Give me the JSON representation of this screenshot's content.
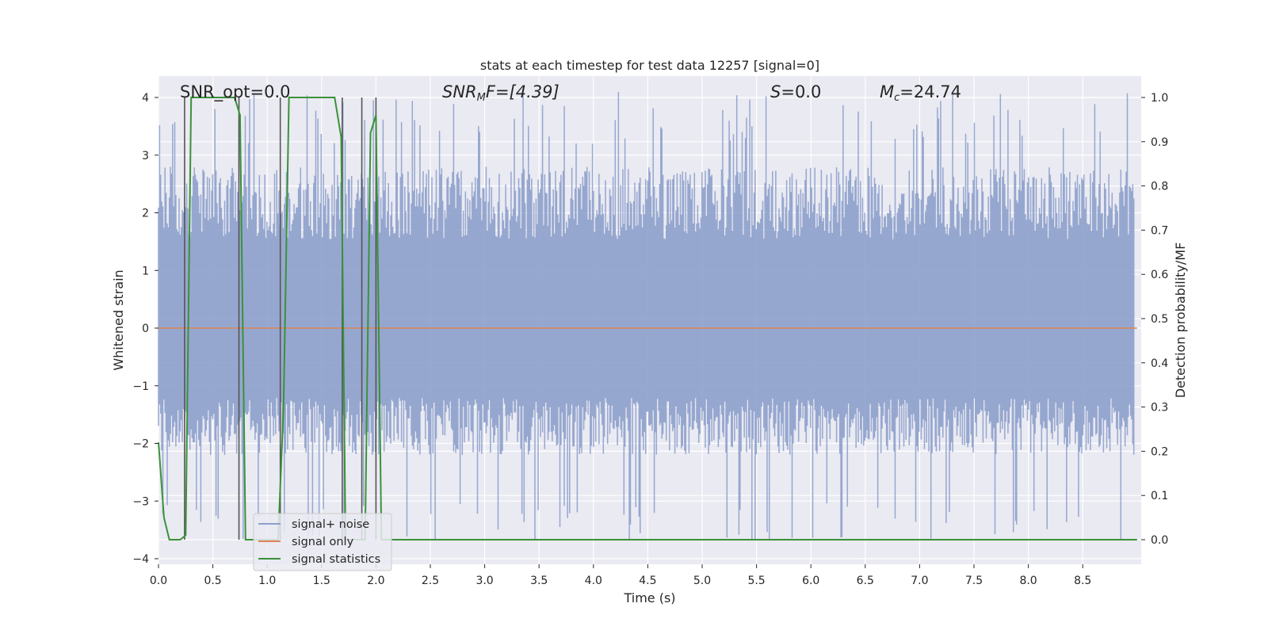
{
  "chart_data": {
    "type": "line",
    "title": "stats at each timestep for test data 12257 [signal=0]",
    "xlabel": "Time (s)",
    "ylabel": "Whitened strain",
    "y2label": "Detection probability/MF",
    "xlim": [
      0,
      9.0
    ],
    "ylim": [
      -4.1,
      4.4
    ],
    "y2lim": [
      -0.047,
      1.045
    ],
    "grid": true,
    "legend_position": "lower-left",
    "x_ticks": [
      "0.0",
      "0.5",
      "1.0",
      "1.5",
      "2.0",
      "2.5",
      "3.0",
      "3.5",
      "4.0",
      "4.5",
      "5.0",
      "5.5",
      "6.0",
      "6.5",
      "7.0",
      "7.5",
      "8.0",
      "8.5"
    ],
    "y_ticks": [
      "4",
      "3",
      "2",
      "1",
      "0",
      "−1",
      "−2",
      "−3",
      "−4"
    ],
    "y2_ticks": [
      "1.0",
      "0.9",
      "0.8",
      "0.7",
      "0.6",
      "0.5",
      "0.4",
      "0.3",
      "0.2",
      "0.1",
      "0.0"
    ],
    "annotations": {
      "snr_opt": "SNR_opt=0.0",
      "snr_mf_main": "SNR",
      "snr_mf_sub": "M",
      "snr_mf_rest": "F=[4.39]",
      "s_main": "S",
      "s_rest": "=0.0",
      "mc_main": "M",
      "mc_sub": "c",
      "mc_rest": "=24.74"
    },
    "legend": [
      {
        "label": "signal+ noise",
        "color": "#8da0cb"
      },
      {
        "label": "signal only",
        "color": "#e1815c"
      },
      {
        "label": "signal statistics",
        "color": "#3a923a"
      }
    ],
    "noise": {
      "name": "signal+ noise",
      "color": "#8da0cb",
      "sample_count": 900,
      "typical_range": [
        -2.2,
        2.8
      ],
      "extreme_range": [
        -3.7,
        4.1
      ]
    },
    "signal_only": {
      "name": "signal only",
      "color": "#dd8452",
      "x": [
        0,
        9.0
      ],
      "y": [
        0,
        0
      ]
    },
    "statistics": {
      "name": "signal statistics",
      "color": "#3a923a",
      "x": [
        0.0,
        0.05,
        0.1,
        0.2,
        0.25,
        0.3,
        0.4,
        0.5,
        0.6,
        0.7,
        0.75,
        0.8,
        0.9,
        1.0,
        1.1,
        1.15,
        1.2,
        1.3,
        1.4,
        1.5,
        1.6,
        1.62,
        1.68,
        1.72,
        1.8,
        1.9,
        1.95,
        2.0,
        2.05,
        2.1,
        2.15,
        2.5,
        3.0,
        4.0,
        5.0,
        5.5,
        5.6,
        5.7,
        6.0,
        6.5,
        7.0,
        7.05,
        7.1,
        7.5,
        8.0,
        8.5,
        9.0
      ],
      "y": [
        0.22,
        0.05,
        0.0,
        0.0,
        0.01,
        1.0,
        1.0,
        1.0,
        1.0,
        1.0,
        0.96,
        0.0,
        0.0,
        0.0,
        0.0,
        0.3,
        1.0,
        1.0,
        1.0,
        1.0,
        1.0,
        1.0,
        0.91,
        0.0,
        0.0,
        0.0,
        0.92,
        0.96,
        0.0,
        0.0,
        0.0,
        0.0,
        0.0,
        0.0,
        0.0,
        0.0,
        0.0,
        0.0,
        0.0,
        0.0,
        0.0,
        0.0,
        0.0,
        0.0,
        0.0,
        0.0,
        0.0
      ]
    },
    "vertical_markers": [
      0.24,
      0.74,
      1.12,
      1.69,
      1.87,
      2.0
    ]
  }
}
